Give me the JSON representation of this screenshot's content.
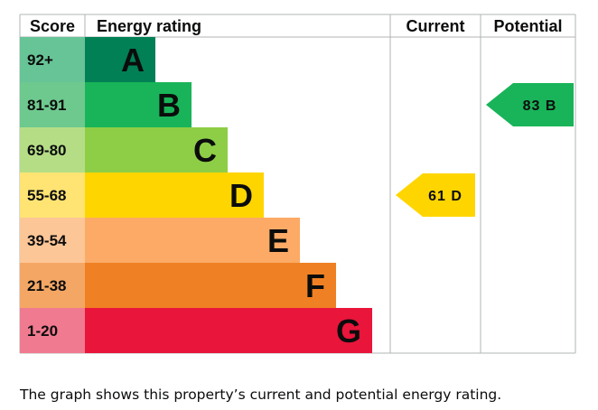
{
  "chart_data": {
    "type": "table",
    "title": "Energy rating",
    "headers": {
      "score": "Score",
      "rating": "Energy rating",
      "current": "Current",
      "potential": "Potential"
    },
    "bands": [
      {
        "band": "A",
        "range": "92+",
        "color": "#008054",
        "score_color": "#67c496"
      },
      {
        "band": "B",
        "range": "81-91",
        "color": "#19b459",
        "score_color": "#6ec98e"
      },
      {
        "band": "C",
        "range": "69-80",
        "color": "#8dce46",
        "score_color": "#b5dd86"
      },
      {
        "band": "D",
        "range": "55-68",
        "color": "#ffd500",
        "score_color": "#ffe473"
      },
      {
        "band": "E",
        "range": "39-54",
        "color": "#fcaa65",
        "score_color": "#fdc697"
      },
      {
        "band": "F",
        "range": "21-38",
        "color": "#ef8023",
        "score_color": "#f4a764"
      },
      {
        "band": "G",
        "range": "1-20",
        "color": "#e9153b",
        "score_color": "#f07a8f"
      }
    ],
    "current": {
      "value": 61,
      "band": "D",
      "label": "61 D",
      "color": "#ffd500"
    },
    "potential": {
      "value": 83,
      "band": "B",
      "label": "83 B",
      "color": "#19b459"
    }
  },
  "caption": "The graph shows this property’s current and potential energy rating."
}
